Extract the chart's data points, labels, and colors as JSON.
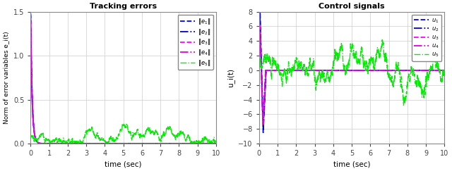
{
  "left_title": "Tracking errors",
  "right_title": "Control signals",
  "left_xlabel": "time (sec)",
  "right_xlabel": "time (sec)",
  "left_ylabel": "Norm of error variables e_i(t)",
  "right_ylabel": "u_i(t)",
  "left_xlim": [
    0,
    10
  ],
  "left_ylim": [
    0,
    1.5
  ],
  "right_xlim": [
    0,
    10
  ],
  "right_ylim": [
    -10,
    8
  ],
  "left_yticks": [
    0,
    0.5,
    1.0,
    1.5
  ],
  "right_yticks": [
    -10,
    -8,
    -6,
    -4,
    -2,
    0,
    2,
    4,
    6,
    8
  ],
  "left_xticks": [
    0,
    1,
    2,
    3,
    4,
    5,
    6,
    7,
    8,
    9,
    10
  ],
  "right_xticks": [
    0,
    1,
    2,
    3,
    4,
    5,
    6,
    7,
    8,
    9,
    10
  ],
  "color_blue": "#0000FF",
  "color_blue_dark": "#0000CC",
  "color_magenta": "#FF00FF",
  "color_magenta_dark": "#DD00DD",
  "color_green": "#00EE00",
  "legend_left": [
    "$\\|e_1\\|$",
    "$\\|e_2\\|$",
    "$\\|e_3\\|$",
    "$\\|e_4\\|$",
    "$\\|e_5\\|$"
  ],
  "legend_right": [
    "$u_1$",
    "$u_2$",
    "$u_3$",
    "$u_4$",
    "$u_5$"
  ],
  "seed": 42,
  "n_points": 2000,
  "t_max": 10.0
}
